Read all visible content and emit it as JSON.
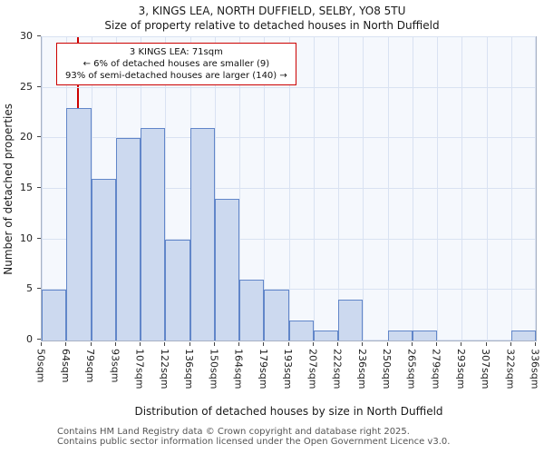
{
  "title": "3, KINGS LEA, NORTH DUFFIELD, SELBY, YO8 5TU",
  "subtitle": "Size of property relative to detached houses in North Duffield",
  "annotation": {
    "line1": "3 KINGS LEA: 71sqm",
    "line2": "← 6% of detached houses are smaller (9)",
    "line3": "93% of semi-detached houses are larger (140) →"
  },
  "chart_data": {
    "type": "bar",
    "title": "3, KINGS LEA, NORTH DUFFIELD, SELBY, YO8 5TU",
    "subtitle": "Size of property relative to detached houses in North Duffield",
    "xlabel": "Distribution of detached houses by size in North Duffield",
    "ylabel": "Number of detached properties",
    "categories": [
      "50sqm",
      "64sqm",
      "79sqm",
      "93sqm",
      "107sqm",
      "122sqm",
      "136sqm",
      "150sqm",
      "164sqm",
      "179sqm",
      "193sqm",
      "207sqm",
      "222sqm",
      "236sqm",
      "250sqm",
      "265sqm",
      "279sqm",
      "293sqm",
      "307sqm",
      "322sqm",
      "336sqm"
    ],
    "bin_edges_sqm": [
      50,
      64,
      79,
      93,
      107,
      122,
      136,
      150,
      164,
      179,
      193,
      207,
      222,
      236,
      250,
      265,
      279,
      293,
      307,
      322,
      336
    ],
    "values": [
      5,
      23,
      16,
      20,
      21,
      10,
      21,
      14,
      6,
      5,
      2,
      1,
      4,
      0,
      1,
      1,
      0,
      0,
      0,
      1
    ],
    "ylim": [
      0,
      30
    ],
    "yticks": [
      0,
      5,
      10,
      15,
      20,
      25,
      30
    ],
    "grid": true,
    "legend": "none",
    "marker_value_sqm": 71,
    "marker_color": "#cc0000",
    "bar_fill": "#ccd9ef",
    "bar_border": "#6186c9",
    "grid_color": "#d9e2f2",
    "plot_bg": "#f5f8fd"
  },
  "footer": {
    "line1": "Contains HM Land Registry data © Crown copyright and database right 2025.",
    "line2": "Contains public sector information licensed under the Open Government Licence v3.0."
  }
}
